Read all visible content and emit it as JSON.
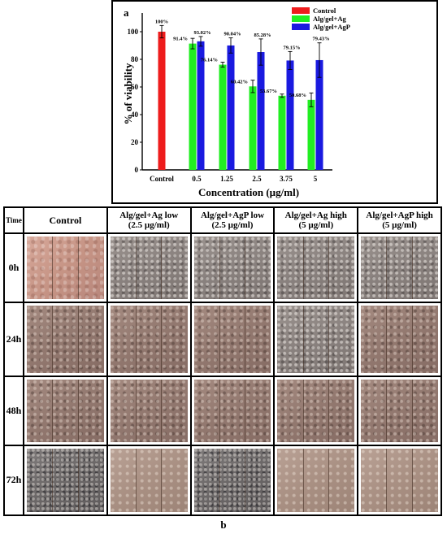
{
  "panel_a_label": "a",
  "panel_b_label": "b",
  "chart_data": {
    "type": "bar",
    "xlabel": "Concentration (µg/ml)",
    "ylabel": "% of viability",
    "ylim": [
      0,
      110
    ],
    "yticks": [
      0,
      20,
      40,
      60,
      80,
      100
    ],
    "categories": [
      "Control",
      "0.5",
      "1.25",
      "2.5",
      "3.75",
      "5"
    ],
    "legend_position": "top-right",
    "series": [
      {
        "name": "Control",
        "color": "#ee1c1c",
        "values": [
          100,
          null,
          null,
          null,
          null,
          null
        ],
        "errors": [
          4.5,
          null,
          null,
          null,
          null,
          null
        ],
        "labels": [
          "100%",
          "",
          "",
          "",
          "",
          ""
        ]
      },
      {
        "name": "Alg/gel+Ag",
        "color": "#22ee22",
        "values": [
          null,
          91.4,
          76.14,
          60.42,
          53.67,
          50.68
        ],
        "errors": [
          null,
          3.8,
          1.8,
          4.5,
          1.2,
          5.0
        ],
        "labels": [
          "",
          "91.4%",
          "76.14%",
          "60.42%",
          "53.67%",
          "50.68%"
        ]
      },
      {
        "name": "Alg/gel+AgP",
        "color": "#1a1ae0",
        "values": [
          null,
          93.02,
          90.04,
          85.28,
          79.15,
          79.43
        ],
        "errors": [
          null,
          3.5,
          5.5,
          9.5,
          6.5,
          12.5
        ],
        "labels": [
          "",
          "93.02%",
          "90.04%",
          "85.28%",
          "79.15%",
          "79.43%"
        ]
      }
    ]
  },
  "grid": {
    "time_header": "Time",
    "columns": [
      {
        "line1": "Control",
        "line2": ""
      },
      {
        "line1": "Alg/gel+Ag low",
        "line2": "(2.5 µg/ml)"
      },
      {
        "line1": "Alg/gel+AgP low",
        "line2": "(2.5 µg/ml)"
      },
      {
        "line1": "Alg/gel+Ag high",
        "line2": "(5 µg/ml)"
      },
      {
        "line1": "Alg/gel+AgP high",
        "line2": "(5 µg/ml)"
      }
    ],
    "rows": [
      {
        "time": "0h",
        "textures": [
          "pink",
          "gray",
          "gray",
          "gray",
          "gray"
        ]
      },
      {
        "time": "24h",
        "textures": [
          "brown",
          "brown",
          "brown",
          "gray",
          "brown"
        ]
      },
      {
        "time": "48h",
        "textures": [
          "brown",
          "brown",
          "brown",
          "brown",
          "brown"
        ]
      },
      {
        "time": "72h",
        "textures": [
          "dark",
          "tan",
          "dark",
          "tan",
          "tan"
        ]
      }
    ]
  }
}
